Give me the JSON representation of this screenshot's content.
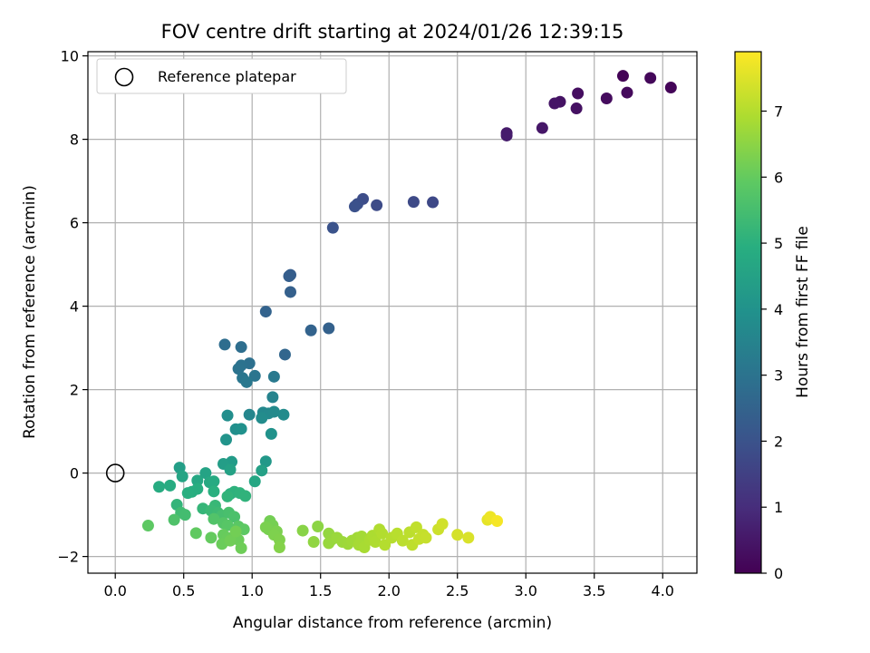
{
  "chart_data": {
    "type": "scatter",
    "title": "FOV centre drift starting at 2024/01/26 12:39:15",
    "xlabel": "Angular distance from reference (arcmin)",
    "ylabel": "Rotation from reference (arcmin)",
    "xlim": [
      -0.2,
      4.25
    ],
    "ylim": [
      -2.4,
      10.1
    ],
    "xticks": [
      "0.0",
      "0.5",
      "1.0",
      "1.5",
      "2.0",
      "2.5",
      "3.0",
      "3.5",
      "4.0"
    ],
    "yticks": [
      "−2",
      "0",
      "2",
      "4",
      "6",
      "8",
      "10"
    ],
    "grid": true,
    "legend": {
      "position": "top-left",
      "label": "Reference platepar"
    },
    "reference_point": {
      "x": 0.0,
      "y": 0.0
    },
    "colorbar": {
      "label": "Hours from first FF file",
      "range": [
        0,
        7.9
      ],
      "ticks": [
        "0",
        "1",
        "2",
        "3",
        "4",
        "5",
        "6",
        "7"
      ],
      "colormap": "viridis"
    },
    "points": [
      {
        "x": 3.71,
        "y": 9.52,
        "c": 0.05
      },
      {
        "x": 4.06,
        "y": 9.24,
        "c": 0.1
      },
      {
        "x": 3.91,
        "y": 9.47,
        "c": 0.15
      },
      {
        "x": 3.74,
        "y": 9.12,
        "c": 0.2
      },
      {
        "x": 3.59,
        "y": 8.98,
        "c": 0.25
      },
      {
        "x": 3.38,
        "y": 9.1,
        "c": 0.3
      },
      {
        "x": 3.37,
        "y": 8.74,
        "c": 0.35
      },
      {
        "x": 3.25,
        "y": 8.9,
        "c": 0.4
      },
      {
        "x": 3.21,
        "y": 8.86,
        "c": 0.45
      },
      {
        "x": 3.12,
        "y": 8.27,
        "c": 0.5
      },
      {
        "x": 2.86,
        "y": 8.15,
        "c": 0.55
      },
      {
        "x": 2.86,
        "y": 8.09,
        "c": 0.6
      },
      {
        "x": 2.32,
        "y": 6.49,
        "c": 1.7
      },
      {
        "x": 2.18,
        "y": 6.5,
        "c": 1.75
      },
      {
        "x": 1.91,
        "y": 6.42,
        "c": 1.8
      },
      {
        "x": 1.81,
        "y": 6.57,
        "c": 1.85
      },
      {
        "x": 1.77,
        "y": 6.45,
        "c": 1.9
      },
      {
        "x": 1.75,
        "y": 6.39,
        "c": 1.95
      },
      {
        "x": 1.59,
        "y": 5.88,
        "c": 2.0
      },
      {
        "x": 1.28,
        "y": 4.75,
        "c": 2.3
      },
      {
        "x": 1.27,
        "y": 4.72,
        "c": 2.35
      },
      {
        "x": 1.28,
        "y": 4.34,
        "c": 2.4
      },
      {
        "x": 1.1,
        "y": 3.87,
        "c": 2.5
      },
      {
        "x": 1.56,
        "y": 3.47,
        "c": 2.45
      },
      {
        "x": 1.43,
        "y": 3.42,
        "c": 2.5
      },
      {
        "x": 1.24,
        "y": 2.84,
        "c": 2.6
      },
      {
        "x": 0.8,
        "y": 3.08,
        "c": 2.8
      },
      {
        "x": 0.92,
        "y": 3.02,
        "c": 2.85
      },
      {
        "x": 0.98,
        "y": 2.63,
        "c": 2.9
      },
      {
        "x": 0.92,
        "y": 2.58,
        "c": 2.95
      },
      {
        "x": 0.9,
        "y": 2.5,
        "c": 3.0
      },
      {
        "x": 1.02,
        "y": 2.33,
        "c": 3.05
      },
      {
        "x": 0.93,
        "y": 2.28,
        "c": 3.1
      },
      {
        "x": 0.96,
        "y": 2.18,
        "c": 3.15
      },
      {
        "x": 1.16,
        "y": 2.31,
        "c": 3.2
      },
      {
        "x": 1.15,
        "y": 1.82,
        "c": 3.5
      },
      {
        "x": 0.98,
        "y": 1.4,
        "c": 3.6
      },
      {
        "x": 1.08,
        "y": 1.45,
        "c": 3.65
      },
      {
        "x": 1.12,
        "y": 1.43,
        "c": 3.7
      },
      {
        "x": 1.16,
        "y": 1.47,
        "c": 3.72
      },
      {
        "x": 1.23,
        "y": 1.4,
        "c": 3.75
      },
      {
        "x": 1.07,
        "y": 1.32,
        "c": 3.8
      },
      {
        "x": 0.82,
        "y": 1.38,
        "c": 3.85
      },
      {
        "x": 0.88,
        "y": 1.05,
        "c": 3.9
      },
      {
        "x": 0.92,
        "y": 1.06,
        "c": 3.95
      },
      {
        "x": 1.14,
        "y": 0.94,
        "c": 4.0
      },
      {
        "x": 0.81,
        "y": 0.8,
        "c": 4.05
      },
      {
        "x": 1.1,
        "y": 0.28,
        "c": 4.2
      },
      {
        "x": 0.85,
        "y": 0.27,
        "c": 4.3
      },
      {
        "x": 0.79,
        "y": 0.22,
        "c": 4.35
      },
      {
        "x": 0.47,
        "y": 0.13,
        "c": 4.4
      },
      {
        "x": 1.07,
        "y": 0.06,
        "c": 4.45
      },
      {
        "x": 0.84,
        "y": 0.08,
        "c": 4.5
      },
      {
        "x": 0.66,
        "y": 0.0,
        "c": 4.55
      },
      {
        "x": 0.49,
        "y": -0.08,
        "c": 4.6
      },
      {
        "x": 1.02,
        "y": -0.2,
        "c": 4.65
      },
      {
        "x": 0.6,
        "y": -0.18,
        "c": 4.7
      },
      {
        "x": 0.69,
        "y": -0.22,
        "c": 4.75
      },
      {
        "x": 0.72,
        "y": -0.2,
        "c": 4.8
      },
      {
        "x": 0.4,
        "y": -0.3,
        "c": 4.82
      },
      {
        "x": 0.32,
        "y": -0.33,
        "c": 4.85
      },
      {
        "x": 0.6,
        "y": -0.38,
        "c": 4.9
      },
      {
        "x": 0.56,
        "y": -0.45,
        "c": 4.92
      },
      {
        "x": 0.53,
        "y": -0.48,
        "c": 4.95
      },
      {
        "x": 0.72,
        "y": -0.44,
        "c": 4.98
      },
      {
        "x": 0.84,
        "y": -0.5,
        "c": 5.0
      },
      {
        "x": 0.87,
        "y": -0.45,
        "c": 5.05
      },
      {
        "x": 0.91,
        "y": -0.48,
        "c": 5.08
      },
      {
        "x": 0.95,
        "y": -0.55,
        "c": 5.1
      },
      {
        "x": 0.82,
        "y": -0.56,
        "c": 5.12
      },
      {
        "x": 0.45,
        "y": -0.76,
        "c": 5.15
      },
      {
        "x": 0.64,
        "y": -0.85,
        "c": 5.2
      },
      {
        "x": 0.73,
        "y": -0.78,
        "c": 5.25
      },
      {
        "x": 0.7,
        "y": -0.9,
        "c": 5.3
      },
      {
        "x": 0.75,
        "y": -0.95,
        "c": 5.35
      },
      {
        "x": 0.48,
        "y": -0.95,
        "c": 5.4
      },
      {
        "x": 0.51,
        "y": -1.0,
        "c": 5.45
      },
      {
        "x": 0.78,
        "y": -1.02,
        "c": 5.5
      },
      {
        "x": 0.83,
        "y": -0.95,
        "c": 5.55
      },
      {
        "x": 0.87,
        "y": -1.05,
        "c": 5.6
      },
      {
        "x": 0.43,
        "y": -1.12,
        "c": 5.65
      },
      {
        "x": 0.72,
        "y": -1.1,
        "c": 5.7
      },
      {
        "x": 0.79,
        "y": -1.2,
        "c": 5.75
      },
      {
        "x": 0.82,
        "y": -1.25,
        "c": 5.8
      },
      {
        "x": 0.9,
        "y": -1.28,
        "c": 5.85
      },
      {
        "x": 0.94,
        "y": -1.35,
        "c": 5.9
      },
      {
        "x": 0.24,
        "y": -1.26,
        "c": 5.9
      },
      {
        "x": 0.59,
        "y": -1.44,
        "c": 5.95
      },
      {
        "x": 0.7,
        "y": -1.55,
        "c": 6.0
      },
      {
        "x": 0.79,
        "y": -1.48,
        "c": 6.02
      },
      {
        "x": 0.82,
        "y": -1.55,
        "c": 6.05
      },
      {
        "x": 0.78,
        "y": -1.7,
        "c": 6.08
      },
      {
        "x": 0.9,
        "y": -1.6,
        "c": 6.1
      },
      {
        "x": 0.92,
        "y": -1.8,
        "c": 6.12
      },
      {
        "x": 0.84,
        "y": -1.62,
        "c": 6.15
      },
      {
        "x": 0.88,
        "y": -1.4,
        "c": 6.18
      },
      {
        "x": 1.13,
        "y": -1.15,
        "c": 6.2
      },
      {
        "x": 1.15,
        "y": -1.25,
        "c": 6.22
      },
      {
        "x": 1.12,
        "y": -1.35,
        "c": 6.25
      },
      {
        "x": 1.1,
        "y": -1.3,
        "c": 6.28
      },
      {
        "x": 1.18,
        "y": -1.4,
        "c": 6.3
      },
      {
        "x": 1.16,
        "y": -1.48,
        "c": 6.32
      },
      {
        "x": 1.2,
        "y": -1.6,
        "c": 6.35
      },
      {
        "x": 1.2,
        "y": -1.78,
        "c": 6.4
      },
      {
        "x": 1.37,
        "y": -1.38,
        "c": 6.45
      },
      {
        "x": 1.48,
        "y": -1.28,
        "c": 6.5
      },
      {
        "x": 1.45,
        "y": -1.65,
        "c": 6.55
      },
      {
        "x": 1.56,
        "y": -1.45,
        "c": 6.6
      },
      {
        "x": 1.58,
        "y": -1.6,
        "c": 6.62
      },
      {
        "x": 1.56,
        "y": -1.68,
        "c": 6.65
      },
      {
        "x": 1.62,
        "y": -1.55,
        "c": 6.68
      },
      {
        "x": 1.66,
        "y": -1.65,
        "c": 6.7
      },
      {
        "x": 1.7,
        "y": -1.7,
        "c": 6.72
      },
      {
        "x": 1.73,
        "y": -1.62,
        "c": 6.75
      },
      {
        "x": 1.77,
        "y": -1.55,
        "c": 6.78
      },
      {
        "x": 1.8,
        "y": -1.52,
        "c": 6.8
      },
      {
        "x": 1.78,
        "y": -1.72,
        "c": 6.82
      },
      {
        "x": 1.82,
        "y": -1.78,
        "c": 6.85
      },
      {
        "x": 1.86,
        "y": -1.6,
        "c": 6.88
      },
      {
        "x": 1.88,
        "y": -1.5,
        "c": 6.9
      },
      {
        "x": 1.9,
        "y": -1.65,
        "c": 6.92
      },
      {
        "x": 1.93,
        "y": -1.35,
        "c": 6.95
      },
      {
        "x": 1.95,
        "y": -1.45,
        "c": 6.98
      },
      {
        "x": 1.97,
        "y": -1.72,
        "c": 7.0
      },
      {
        "x": 2.02,
        "y": -1.55,
        "c": 7.02
      },
      {
        "x": 2.06,
        "y": -1.45,
        "c": 7.05
      },
      {
        "x": 2.1,
        "y": -1.62,
        "c": 7.08
      },
      {
        "x": 2.15,
        "y": -1.42,
        "c": 7.1
      },
      {
        "x": 2.17,
        "y": -1.72,
        "c": 7.12
      },
      {
        "x": 2.2,
        "y": -1.3,
        "c": 7.15
      },
      {
        "x": 2.22,
        "y": -1.58,
        "c": 7.18
      },
      {
        "x": 2.25,
        "y": -1.48,
        "c": 7.2
      },
      {
        "x": 2.27,
        "y": -1.55,
        "c": 7.22
      },
      {
        "x": 2.36,
        "y": -1.35,
        "c": 7.3
      },
      {
        "x": 2.39,
        "y": -1.22,
        "c": 7.35
      },
      {
        "x": 2.5,
        "y": -1.48,
        "c": 7.4
      },
      {
        "x": 2.58,
        "y": -1.55,
        "c": 7.45
      },
      {
        "x": 2.72,
        "y": -1.12,
        "c": 7.6
      },
      {
        "x": 2.74,
        "y": -1.05,
        "c": 7.7
      },
      {
        "x": 2.79,
        "y": -1.15,
        "c": 7.8
      }
    ]
  }
}
